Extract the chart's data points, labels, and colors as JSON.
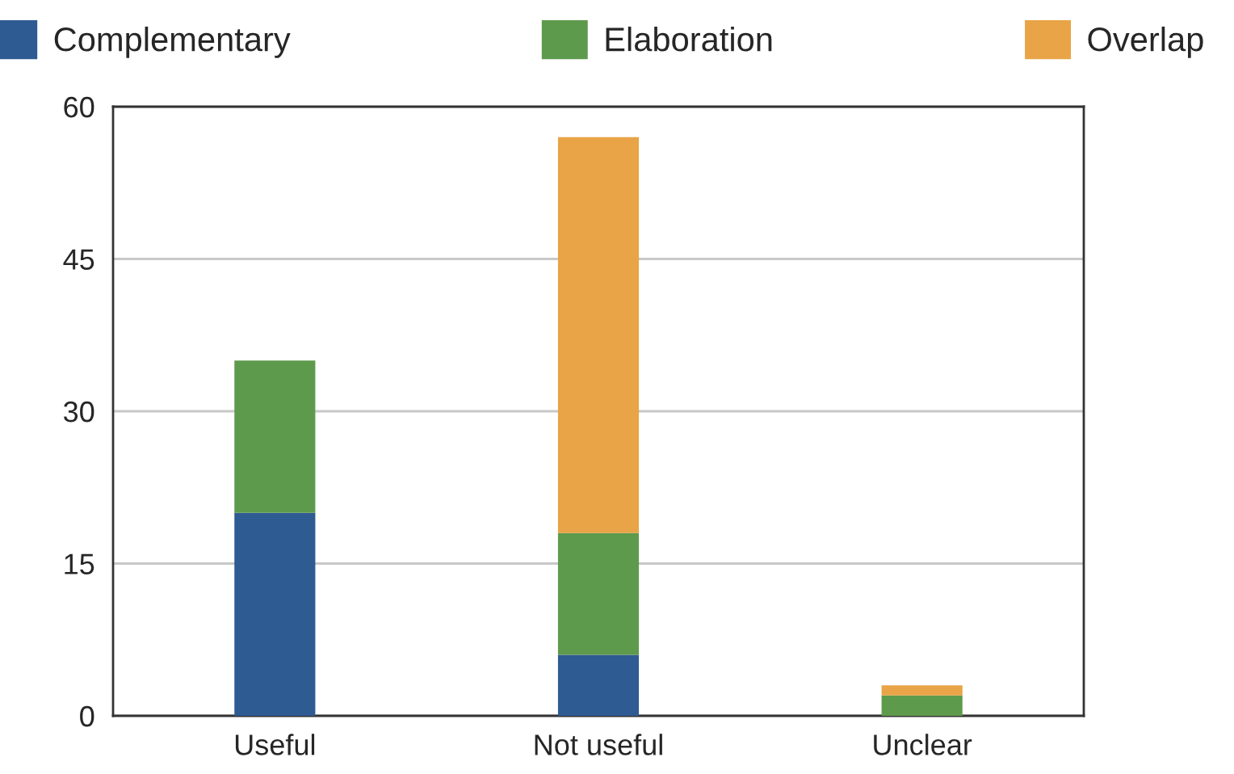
{
  "chart_data": {
    "type": "bar",
    "stacked": true,
    "categories": [
      "Useful",
      "Not useful",
      "Unclear"
    ],
    "series": [
      {
        "name": "Complementary",
        "color": "#2f5b93",
        "values": [
          20,
          6,
          0
        ]
      },
      {
        "name": "Elaboration",
        "color": "#5e9a4c",
        "values": [
          15,
          12,
          2
        ]
      },
      {
        "name": "Overlap",
        "color": "#e8a446",
        "values": [
          0,
          39,
          1
        ]
      }
    ],
    "ylim": [
      0,
      60
    ],
    "yticks": [
      0,
      15,
      30,
      45,
      60
    ],
    "grid": "y",
    "legend": "top"
  }
}
